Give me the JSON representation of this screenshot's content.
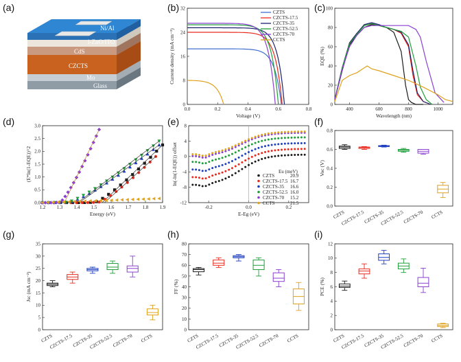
{
  "colors": {
    "CZTS": "#1a1a1a",
    "CZCTS-17.5": "#e8291c",
    "CZCTS-35": "#1f3fbf",
    "CZCTS-52.5": "#1f9e3a",
    "CZCTS-70": "#8a3fd0",
    "CCTS": "#e0a11b",
    "CZTS_b": "#3f6ecf",
    "CZCTS-35_b": "#1b1f6e",
    "CZCTS-70_b": "#2f9c8c"
  },
  "panel_labels": [
    "(a)",
    "(b)",
    "(c)",
    "(d)",
    "(e)",
    "(f)",
    "(g)",
    "(h)",
    "(i)"
  ],
  "schematic": {
    "layers": [
      "Ni/Al",
      "i-ZnO/ITO",
      "CdS",
      "CZCTS",
      "Mo",
      "Glass"
    ]
  },
  "chart_data": [
    {
      "panel": "(b)",
      "type": "line",
      "xlabel": "Voltage (V)",
      "ylabel": "Current density (mA cm⁻²)",
      "xlim": [
        0.0,
        0.8
      ],
      "ylim": [
        0,
        32
      ],
      "xticks": [
        "0.0",
        "0.2",
        "0.4",
        "0.6",
        "0.8"
      ],
      "yticks": [
        "0",
        "8",
        "16",
        "24",
        "32"
      ],
      "legend": "top-right",
      "series": [
        {
          "name": "CZTS",
          "jsc": 18.5,
          "voc": 0.62
        },
        {
          "name": "CZCTS-17.5",
          "jsc": 24.0,
          "voc": 0.625
        },
        {
          "name": "CZCTS-35",
          "jsc": 25.5,
          "voc": 0.64
        },
        {
          "name": "CZCTS-52.5",
          "jsc": 26.5,
          "voc": 0.6
        },
        {
          "name": "CZCTS-70",
          "jsc": 27.0,
          "voc": 0.58
        },
        {
          "name": "CCTS",
          "jsc": 8.0,
          "voc": 0.24
        }
      ]
    },
    {
      "panel": "(c)",
      "type": "line",
      "xlabel": "Wavelength (nm)",
      "ylabel": "EQE (%)",
      "xlim": [
        300,
        1100
      ],
      "ylim": [
        0,
        100
      ],
      "xticks": [
        "400",
        "600",
        "800",
        "1000"
      ],
      "yticks": [
        "0",
        "20",
        "40",
        "60",
        "80",
        "100"
      ],
      "series": [
        {
          "name": "CZTS",
          "x": [
            300,
            350,
            400,
            450,
            500,
            550,
            600,
            650,
            700,
            750,
            780,
            800,
            820,
            850,
            900
          ],
          "y": [
            5,
            35,
            62,
            72,
            80,
            83,
            82,
            80,
            75,
            55,
            20,
            5,
            2,
            0,
            0
          ]
        },
        {
          "name": "CZCTS-17.5",
          "x": [
            300,
            350,
            400,
            450,
            500,
            550,
            600,
            650,
            700,
            750,
            800,
            830,
            860,
            900,
            950
          ],
          "y": [
            5,
            38,
            64,
            74,
            82,
            84,
            82,
            80,
            78,
            74,
            60,
            30,
            10,
            3,
            0
          ]
        },
        {
          "name": "CZCTS-35",
          "x": [
            300,
            350,
            400,
            450,
            500,
            550,
            600,
            650,
            700,
            750,
            800,
            830,
            860,
            900,
            950
          ],
          "y": [
            5,
            38,
            64,
            74,
            83,
            85,
            83,
            80,
            78,
            75,
            62,
            35,
            12,
            3,
            0
          ]
        },
        {
          "name": "CZCTS-52.5",
          "x": [
            300,
            350,
            400,
            450,
            500,
            550,
            600,
            650,
            700,
            750,
            800,
            850,
            880,
            920,
            960
          ],
          "y": [
            5,
            38,
            63,
            73,
            82,
            84,
            82,
            80,
            78,
            76,
            70,
            40,
            18,
            5,
            0
          ]
        },
        {
          "name": "CZCTS-70",
          "x": [
            300,
            350,
            400,
            450,
            500,
            550,
            600,
            650,
            700,
            750,
            800,
            850,
            880,
            920,
            980,
            1040
          ],
          "y": [
            5,
            36,
            60,
            72,
            80,
            82,
            82,
            82,
            82,
            82,
            82,
            78,
            70,
            45,
            12,
            2
          ]
        },
        {
          "name": "CCTS",
          "x": [
            300,
            350,
            400,
            450,
            500,
            520,
            550,
            600,
            700,
            800,
            900,
            1000,
            1050,
            1100
          ],
          "y": [
            3,
            25,
            30,
            33,
            38,
            40,
            37,
            35,
            30,
            25,
            18,
            10,
            5,
            3
          ]
        }
      ]
    },
    {
      "panel": "(d)",
      "type": "scatter",
      "xlabel": "Energy (eV)",
      "ylabel": "(E*ln(1-EQE))^2",
      "xlim": [
        1.2,
        1.9
      ],
      "ylim": [
        0,
        3
      ],
      "xticks": [
        "1.2",
        "1.3",
        "1.4",
        "1.5",
        "1.6",
        "1.7",
        "1.8",
        "1.9"
      ],
      "yticks": [
        "0.0",
        "0.5",
        "1.0",
        "1.5",
        "2.0",
        "2.5",
        "3.0"
      ],
      "series": [
        {
          "name": "CZTS",
          "onset": 1.5,
          "end": 1.9,
          "ymax": 2.25,
          "marker": "square"
        },
        {
          "name": "CZCTS-17.5",
          "onset": 1.52,
          "end": 1.86,
          "ymax": 1.8,
          "marker": "circle"
        },
        {
          "name": "CZCTS-35",
          "onset": 1.35,
          "end": 1.88,
          "ymax": 2.25,
          "marker": "triangle-up"
        },
        {
          "name": "CZCTS-52.5",
          "onset": 1.34,
          "end": 1.88,
          "ymax": 2.4,
          "marker": "triangle-down"
        },
        {
          "name": "CZCTS-70",
          "onset": 1.3,
          "end": 1.53,
          "ymax": 2.85,
          "marker": "diamond"
        },
        {
          "name": "CCTS",
          "onset": 1.2,
          "end": 1.88,
          "ymax": 0.16,
          "marker": "triangle-left"
        }
      ]
    },
    {
      "panel": "(e)",
      "type": "scatter",
      "xlabel": "E-Eg (eV)",
      "ylabel": "ln(-ln(1-EQE)) offset",
      "xlim": [
        -0.3,
        0.3
      ],
      "ylim": [
        -12,
        8
      ],
      "xticks": [
        "-0.2",
        "0.0",
        "0.2"
      ],
      "yticks": [
        "-12",
        "-8",
        "-4",
        "0",
        "4",
        "8"
      ],
      "legend_title": "Eu (meV)",
      "series": [
        {
          "name": "CZTS",
          "eu": "20.9",
          "offset": -7.5,
          "plateau": 0.5
        },
        {
          "name": "CZCTS-17.5",
          "eu": "16.7",
          "offset": -5.5,
          "plateau": 2.0
        },
        {
          "name": "CZCTS-35",
          "eu": "16.6",
          "offset": -3.5,
          "plateau": 3.5
        },
        {
          "name": "CZCTS-52.5",
          "eu": "16.0",
          "offset": -1.5,
          "plateau": 5.0
        },
        {
          "name": "CZCTS-70",
          "eu": "15.2",
          "offset": 0.0,
          "plateau": 6.2
        },
        {
          "name": "CCTS",
          "eu": "21.5",
          "offset": 0.5,
          "plateau": 6.5
        }
      ]
    },
    {
      "panel": "(f)",
      "type": "box",
      "ylabel": "Voc (V)",
      "ylim": [
        0.0,
        0.8
      ],
      "yticks": [
        "0.0",
        "0.2",
        "0.4",
        "0.6",
        "0.8"
      ],
      "categories": [
        "CZTS",
        "CZCTS-17.5",
        "CZCTS-35",
        "CZCTS-52.5",
        "CZCTS-70",
        "CCTS"
      ],
      "boxes": [
        [
          0.6,
          0.61,
          0.625,
          0.635,
          0.65
        ],
        [
          0.6,
          0.61,
          0.62,
          0.625,
          0.63
        ],
        [
          0.625,
          0.63,
          0.635,
          0.64,
          0.645
        ],
        [
          0.57,
          0.58,
          0.59,
          0.6,
          0.61
        ],
        [
          0.55,
          0.56,
          0.58,
          0.6,
          0.6
        ],
        [
          0.09,
          0.14,
          0.18,
          0.22,
          0.25
        ]
      ]
    },
    {
      "panel": "(g)",
      "type": "box",
      "ylabel": "Jsc (mA cm⁻²)",
      "ylim": [
        0,
        35
      ],
      "yticks": [
        "0",
        "5",
        "10",
        "15",
        "20",
        "25",
        "30",
        "35"
      ],
      "categories": [
        "CZTS",
        "CZCTS-17.5",
        "CZCTS-35",
        "CZCTS-52.5",
        "CZCTS-70",
        "CCTS"
      ],
      "boxes": [
        [
          17.5,
          18,
          18.5,
          19,
          20
        ],
        [
          19,
          20.5,
          21.5,
          22.5,
          23.5
        ],
        [
          23,
          24,
          24.5,
          25,
          25.5
        ],
        [
          23,
          24.5,
          25.5,
          27,
          28
        ],
        [
          21.5,
          23.5,
          25,
          26,
          30
        ],
        [
          4,
          6,
          7,
          8.5,
          10
        ]
      ]
    },
    {
      "panel": "(h)",
      "type": "box",
      "ylabel": "FF (%)",
      "ylim": [
        0,
        80
      ],
      "yticks": [
        "0",
        "10",
        "20",
        "30",
        "40",
        "50",
        "60",
        "70",
        "80"
      ],
      "categories": [
        "CZTS",
        "CZCTS-17.5",
        "CZCTS-35",
        "CZCTS-52.5",
        "CZCTS-70",
        "CCTS"
      ],
      "boxes": [
        [
          51,
          54,
          56,
          57,
          58
        ],
        [
          58,
          60,
          62,
          65,
          67
        ],
        [
          64,
          67,
          68,
          69,
          70
        ],
        [
          50,
          56,
          60,
          65,
          67
        ],
        [
          40,
          45,
          48,
          53,
          56
        ],
        [
          18,
          24,
          31,
          38,
          44
        ]
      ]
    },
    {
      "panel": "(i)",
      "type": "box",
      "ylabel": "PCE (%)",
      "ylim": [
        0,
        12
      ],
      "yticks": [
        "0",
        "2",
        "4",
        "6",
        "8",
        "10",
        "12"
      ],
      "categories": [
        "CZTS",
        "CZCTS-17.5",
        "CZCTS-35",
        "CZCTS-52.5",
        "CZCTS-70",
        "CCTS"
      ],
      "boxes": [
        [
          5.5,
          5.9,
          6.1,
          6.4,
          6.8
        ],
        [
          7.2,
          7.8,
          8.2,
          8.5,
          9.2
        ],
        [
          9.2,
          9.7,
          10.1,
          10.6,
          11.1
        ],
        [
          8,
          8.5,
          8.9,
          9.3,
          9.9
        ],
        [
          5.2,
          6,
          6.5,
          7.3,
          8.6
        ],
        [
          0.3,
          0.45,
          0.6,
          0.8,
          0.9
        ]
      ]
    }
  ]
}
